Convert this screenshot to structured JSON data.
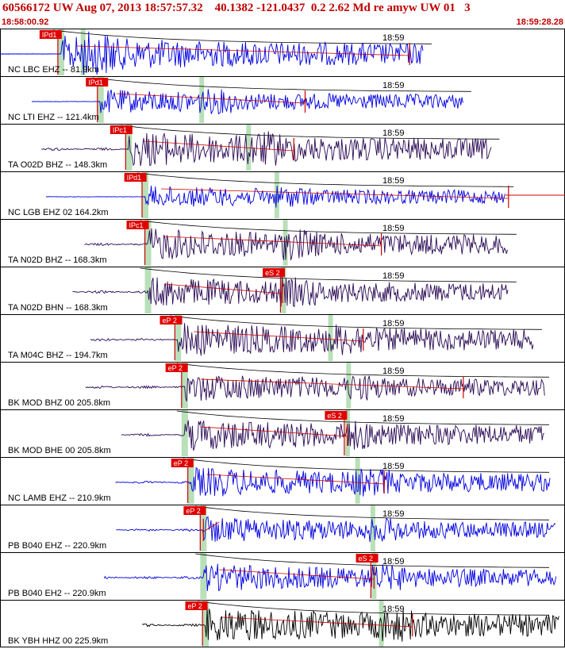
{
  "header": {
    "line": "60566172 UW Aug 07, 2013 18:57:57.32    40.1382 -121.0437  0.2 2.62 Md re amyw UW 01   3",
    "start_time": "18:58:00.92",
    "end_time": "18:59:28.28"
  },
  "colors": {
    "header_text": "#c00000",
    "pick_flag": "#e00000",
    "pick_line": "#d00000",
    "s_window": "#b9e0b9",
    "trace_blue": "#0000e0",
    "trace_purple": "#2a0a55",
    "trace_black": "#000000",
    "theoretical_curve": "#000000",
    "time_label": "#000000"
  },
  "chart_data": {
    "type": "line",
    "time_label": "18:59",
    "traces": [
      {
        "label": "NC LBC EHZ -- 81.9km",
        "pick": "IPd1",
        "color": "blue",
        "onset": 0.108,
        "pick_flag_pos": 0.07,
        "end": 0.75,
        "amp": 0.9,
        "s_pos": 0.147,
        "red_x": 0.725
      },
      {
        "label": "NC LTI EHZ -- 121.4km",
        "pick": "IPd1",
        "color": "blue",
        "onset": 0.178,
        "pick_flag_pos": 0.152,
        "end": 0.82,
        "amp": 0.6,
        "s_pos": 0.357,
        "red_x": 0.54
      },
      {
        "label": "TA O02D BHZ -- 148.3km",
        "pick": "IPc1",
        "color": "purple",
        "onset": 0.228,
        "pick_flag_pos": 0.195,
        "end": 0.87,
        "amp": 0.9,
        "s_pos": 0.44,
        "red_x": 0.52
      },
      {
        "label": "NC LGB EHZ 02 164.2km",
        "pick": "IPd1",
        "color": "blue",
        "onset": 0.257,
        "pick_flag_pos": 0.22,
        "end": 0.895,
        "amp": 0.55,
        "s_pos": 0.49,
        "red_x": 0.9,
        "tail": true
      },
      {
        "label": "TA N02D BHZ -- 168.3km",
        "pick": "IPc1",
        "color": "purple",
        "onset": 0.262,
        "pick_flag_pos": 0.224,
        "end": 0.9,
        "amp": 0.8,
        "s_pos": 0.505,
        "red_x": 0.675
      },
      {
        "label": "TA N02D BHN -- 168.3km",
        "pick": "eS 2",
        "color": "purple",
        "onset": 0.262,
        "pick_flag_pos": 0.465,
        "end": 0.9,
        "amp": 0.75,
        "s_pos": 0.502,
        "red_x": 0.5
      },
      {
        "label": "TA M04C BHZ -- 194.7km",
        "pick": "eP 2",
        "color": "purple",
        "onset": 0.315,
        "pick_flag_pos": 0.283,
        "end": 0.945,
        "amp": 0.85,
        "s_pos": 0.585,
        "red_x": 0.643
      },
      {
        "label": "BK MOD BHZ 00 205.8km",
        "pick": "eP 2",
        "color": "purple",
        "onset": 0.327,
        "pick_flag_pos": 0.293,
        "end": 0.965,
        "amp": 0.7,
        "s_pos": 0.617,
        "red_x": 0.82
      },
      {
        "label": "BK MOD BHE 00 205.8km",
        "pick": "eS 2",
        "color": "purple",
        "onset": 0.327,
        "pick_flag_pos": 0.575,
        "end": 0.965,
        "amp": 0.8,
        "s_pos": 0.615,
        "red_x": 0.615
      },
      {
        "label": "NC LAMB EHZ -- 210.9km",
        "pick": "eP 2",
        "color": "blue",
        "onset": 0.338,
        "pick_flag_pos": 0.303,
        "end": 0.975,
        "amp": 0.75,
        "s_pos": 0.633,
        "red_x": 0.68
      },
      {
        "label": "PB B040 EHZ -- 220.9km",
        "pick": "eP 2",
        "color": "blue",
        "onset": 0.36,
        "pick_flag_pos": 0.325,
        "end": 0.985,
        "amp": 0.65,
        "s_pos": 0.66,
        "red_x": 0.36
      },
      {
        "label": "PB B040 EH2 -- 220.9km",
        "pick": "eS 2",
        "color": "blue",
        "onset": 0.36,
        "pick_flag_pos": 0.63,
        "end": 0.985,
        "amp": 0.7,
        "s_pos": 0.662,
        "red_x": 0.662
      },
      {
        "label": "BK YBH HHZ 00 225.9km",
        "pick": "eP 2",
        "color": "black",
        "onset": 0.364,
        "pick_flag_pos": 0.328,
        "end": 0.99,
        "amp": 0.9,
        "s_pos": 0.675,
        "red_x": 0.73
      }
    ]
  }
}
